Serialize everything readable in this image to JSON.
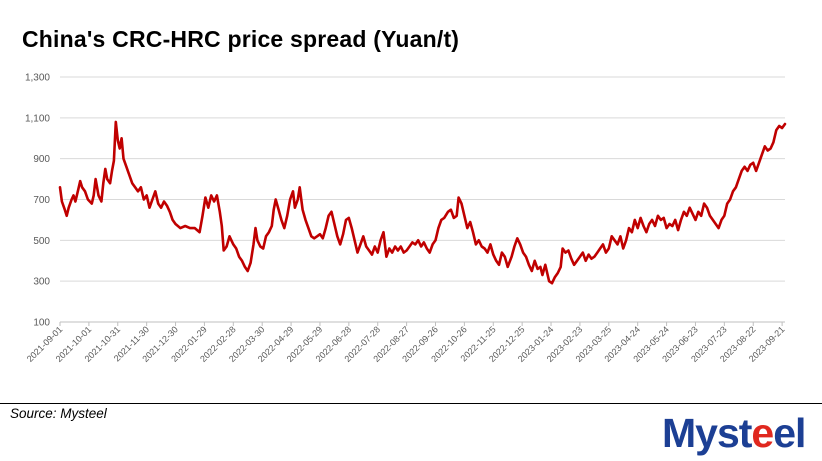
{
  "title": "China's CRC-HRC price spread (Yuan/t)",
  "source": "Source: Mysteel",
  "logo": {
    "text_part1": "Myst",
    "accent_part": "e",
    "text_part2": "el",
    "primary_color": "#1c3f94",
    "accent_color": "#e0281f"
  },
  "chart_data": {
    "type": "line",
    "title": "China's CRC-HRC price spread (Yuan/t)",
    "xlabel": "",
    "ylabel": "",
    "ylim": [
      100,
      1300
    ],
    "yticks": [
      100,
      300,
      500,
      700,
      900,
      1100,
      1300
    ],
    "ytick_labels": [
      "100",
      "300",
      "500",
      "700",
      "900",
      "1,100",
      "1,300"
    ],
    "xtick_labels": [
      "2021-09-01",
      "2021-10-01",
      "2021-10-31",
      "2021-11-30",
      "2021-12-30",
      "2022-01-29",
      "2022-02-28",
      "2022-03-30",
      "2022-04-29",
      "2022-05-29",
      "2022-06-28",
      "2022-07-28",
      "2022-08-27",
      "2022-09-26",
      "2022-10-26",
      "2022-11-25",
      "2022-12-25",
      "2023-01-24",
      "2023-02-23",
      "2023-03-25",
      "2023-04-24",
      "2023-05-24",
      "2023-06-23",
      "2023-07-23",
      "2023-08-22",
      "2023-09-21"
    ],
    "grid": "horizontal",
    "line_color": "#c00000",
    "series": [
      {
        "values": [
          [
            "2021-09-01",
            760
          ],
          [
            "2021-09-03",
            690
          ],
          [
            "2021-09-06",
            650
          ],
          [
            "2021-09-08",
            620
          ],
          [
            "2021-09-10",
            660
          ],
          [
            "2021-09-13",
            700
          ],
          [
            "2021-09-15",
            720
          ],
          [
            "2021-09-17",
            690
          ],
          [
            "2021-09-20",
            750
          ],
          [
            "2021-09-22",
            790
          ],
          [
            "2021-09-24",
            760
          ],
          [
            "2021-09-27",
            740
          ],
          [
            "2021-09-30",
            700
          ],
          [
            "2021-10-04",
            680
          ],
          [
            "2021-10-06",
            720
          ],
          [
            "2021-10-08",
            800
          ],
          [
            "2021-10-11",
            720
          ],
          [
            "2021-10-14",
            690
          ],
          [
            "2021-10-16",
            780
          ],
          [
            "2021-10-18",
            850
          ],
          [
            "2021-10-20",
            800
          ],
          [
            "2021-10-23",
            780
          ],
          [
            "2021-10-25",
            840
          ],
          [
            "2021-10-27",
            890
          ],
          [
            "2021-10-29",
            1080
          ],
          [
            "2021-10-31",
            990
          ],
          [
            "2021-11-02",
            950
          ],
          [
            "2021-11-04",
            1000
          ],
          [
            "2021-11-06",
            900
          ],
          [
            "2021-11-09",
            860
          ],
          [
            "2021-11-12",
            820
          ],
          [
            "2021-11-15",
            780
          ],
          [
            "2021-11-18",
            760
          ],
          [
            "2021-11-21",
            740
          ],
          [
            "2021-11-24",
            760
          ],
          [
            "2021-11-27",
            700
          ],
          [
            "2021-11-30",
            720
          ],
          [
            "2021-12-03",
            660
          ],
          [
            "2021-12-06",
            700
          ],
          [
            "2021-12-09",
            740
          ],
          [
            "2021-12-12",
            680
          ],
          [
            "2021-12-15",
            660
          ],
          [
            "2021-12-18",
            690
          ],
          [
            "2021-12-21",
            670
          ],
          [
            "2021-12-24",
            640
          ],
          [
            "2021-12-27",
            600
          ],
          [
            "2021-12-30",
            580
          ],
          [
            "2022-01-04",
            560
          ],
          [
            "2022-01-09",
            570
          ],
          [
            "2022-01-14",
            560
          ],
          [
            "2022-01-19",
            560
          ],
          [
            "2022-01-24",
            540
          ],
          [
            "2022-01-27",
            620
          ],
          [
            "2022-01-30",
            710
          ],
          [
            "2022-02-02",
            660
          ],
          [
            "2022-02-05",
            720
          ],
          [
            "2022-02-08",
            690
          ],
          [
            "2022-02-11",
            720
          ],
          [
            "2022-02-14",
            640
          ],
          [
            "2022-02-16",
            570
          ],
          [
            "2022-02-18",
            450
          ],
          [
            "2022-02-21",
            470
          ],
          [
            "2022-02-24",
            520
          ],
          [
            "2022-02-28",
            480
          ],
          [
            "2022-03-03",
            460
          ],
          [
            "2022-03-06",
            420
          ],
          [
            "2022-03-09",
            400
          ],
          [
            "2022-03-12",
            370
          ],
          [
            "2022-03-15",
            350
          ],
          [
            "2022-03-18",
            390
          ],
          [
            "2022-03-21",
            480
          ],
          [
            "2022-03-23",
            560
          ],
          [
            "2022-03-25",
            500
          ],
          [
            "2022-03-28",
            470
          ],
          [
            "2022-03-31",
            460
          ],
          [
            "2022-04-03",
            520
          ],
          [
            "2022-04-06",
            540
          ],
          [
            "2022-04-09",
            570
          ],
          [
            "2022-04-11",
            650
          ],
          [
            "2022-04-13",
            700
          ],
          [
            "2022-04-16",
            650
          ],
          [
            "2022-04-19",
            600
          ],
          [
            "2022-04-22",
            560
          ],
          [
            "2022-04-25",
            620
          ],
          [
            "2022-04-28",
            700
          ],
          [
            "2022-05-01",
            740
          ],
          [
            "2022-05-03",
            660
          ],
          [
            "2022-05-06",
            700
          ],
          [
            "2022-05-08",
            760
          ],
          [
            "2022-05-11",
            650
          ],
          [
            "2022-05-14",
            600
          ],
          [
            "2022-05-17",
            560
          ],
          [
            "2022-05-20",
            520
          ],
          [
            "2022-05-23",
            510
          ],
          [
            "2022-05-26",
            520
          ],
          [
            "2022-05-29",
            530
          ],
          [
            "2022-06-01",
            510
          ],
          [
            "2022-06-04",
            560
          ],
          [
            "2022-06-07",
            620
          ],
          [
            "2022-06-10",
            640
          ],
          [
            "2022-06-13",
            580
          ],
          [
            "2022-06-16",
            520
          ],
          [
            "2022-06-19",
            480
          ],
          [
            "2022-06-22",
            530
          ],
          [
            "2022-06-25",
            600
          ],
          [
            "2022-06-28",
            610
          ],
          [
            "2022-07-01",
            560
          ],
          [
            "2022-07-04",
            500
          ],
          [
            "2022-07-07",
            440
          ],
          [
            "2022-07-10",
            480
          ],
          [
            "2022-07-13",
            520
          ],
          [
            "2022-07-16",
            470
          ],
          [
            "2022-07-19",
            450
          ],
          [
            "2022-07-22",
            430
          ],
          [
            "2022-07-25",
            470
          ],
          [
            "2022-07-28",
            440
          ],
          [
            "2022-07-31",
            500
          ],
          [
            "2022-08-03",
            540
          ],
          [
            "2022-08-06",
            420
          ],
          [
            "2022-08-09",
            460
          ],
          [
            "2022-08-12",
            440
          ],
          [
            "2022-08-15",
            470
          ],
          [
            "2022-08-18",
            450
          ],
          [
            "2022-08-21",
            470
          ],
          [
            "2022-08-24",
            440
          ],
          [
            "2022-08-27",
            450
          ],
          [
            "2022-08-30",
            470
          ],
          [
            "2022-09-02",
            490
          ],
          [
            "2022-09-05",
            480
          ],
          [
            "2022-09-08",
            500
          ],
          [
            "2022-09-11",
            470
          ],
          [
            "2022-09-14",
            490
          ],
          [
            "2022-09-17",
            460
          ],
          [
            "2022-09-20",
            440
          ],
          [
            "2022-09-23",
            480
          ],
          [
            "2022-09-26",
            500
          ],
          [
            "2022-09-29",
            560
          ],
          [
            "2022-10-02",
            600
          ],
          [
            "2022-10-05",
            610
          ],
          [
            "2022-10-09",
            640
          ],
          [
            "2022-10-12",
            650
          ],
          [
            "2022-10-15",
            610
          ],
          [
            "2022-10-18",
            620
          ],
          [
            "2022-10-20",
            710
          ],
          [
            "2022-10-23",
            680
          ],
          [
            "2022-10-26",
            620
          ],
          [
            "2022-10-29",
            560
          ],
          [
            "2022-11-01",
            590
          ],
          [
            "2022-11-04",
            540
          ],
          [
            "2022-11-07",
            480
          ],
          [
            "2022-11-10",
            500
          ],
          [
            "2022-11-13",
            470
          ],
          [
            "2022-11-16",
            460
          ],
          [
            "2022-11-19",
            440
          ],
          [
            "2022-11-22",
            480
          ],
          [
            "2022-11-25",
            430
          ],
          [
            "2022-11-28",
            400
          ],
          [
            "2022-12-01",
            380
          ],
          [
            "2022-12-04",
            440
          ],
          [
            "2022-12-07",
            420
          ],
          [
            "2022-12-10",
            370
          ],
          [
            "2022-12-14",
            420
          ],
          [
            "2022-12-17",
            470
          ],
          [
            "2022-12-20",
            510
          ],
          [
            "2022-12-23",
            480
          ],
          [
            "2022-12-26",
            440
          ],
          [
            "2022-12-29",
            420
          ],
          [
            "2023-01-01",
            380
          ],
          [
            "2023-01-04",
            350
          ],
          [
            "2023-01-07",
            400
          ],
          [
            "2023-01-10",
            360
          ],
          [
            "2023-01-13",
            370
          ],
          [
            "2023-01-15",
            330
          ],
          [
            "2023-01-18",
            380
          ],
          [
            "2023-01-20",
            340
          ],
          [
            "2023-01-22",
            300
          ],
          [
            "2023-01-25",
            290
          ],
          [
            "2023-01-28",
            320
          ],
          [
            "2023-01-31",
            340
          ],
          [
            "2023-02-03",
            370
          ],
          [
            "2023-02-05",
            460
          ],
          [
            "2023-02-08",
            440
          ],
          [
            "2023-02-11",
            450
          ],
          [
            "2023-02-14",
            410
          ],
          [
            "2023-02-17",
            380
          ],
          [
            "2023-02-20",
            400
          ],
          [
            "2023-02-23",
            420
          ],
          [
            "2023-02-26",
            440
          ],
          [
            "2023-03-01",
            400
          ],
          [
            "2023-03-04",
            430
          ],
          [
            "2023-03-07",
            410
          ],
          [
            "2023-03-10",
            420
          ],
          [
            "2023-03-13",
            440
          ],
          [
            "2023-03-16",
            460
          ],
          [
            "2023-03-19",
            480
          ],
          [
            "2023-03-22",
            440
          ],
          [
            "2023-03-25",
            460
          ],
          [
            "2023-03-28",
            520
          ],
          [
            "2023-03-31",
            500
          ],
          [
            "2023-04-03",
            480
          ],
          [
            "2023-04-06",
            520
          ],
          [
            "2023-04-09",
            460
          ],
          [
            "2023-04-12",
            500
          ],
          [
            "2023-04-15",
            560
          ],
          [
            "2023-04-18",
            540
          ],
          [
            "2023-04-21",
            600
          ],
          [
            "2023-04-24",
            560
          ],
          [
            "2023-04-27",
            610
          ],
          [
            "2023-04-30",
            570
          ],
          [
            "2023-05-03",
            540
          ],
          [
            "2023-05-06",
            580
          ],
          [
            "2023-05-09",
            600
          ],
          [
            "2023-05-12",
            570
          ],
          [
            "2023-05-15",
            620
          ],
          [
            "2023-05-18",
            600
          ],
          [
            "2023-05-21",
            610
          ],
          [
            "2023-05-24",
            560
          ],
          [
            "2023-05-27",
            580
          ],
          [
            "2023-05-30",
            570
          ],
          [
            "2023-06-02",
            600
          ],
          [
            "2023-06-05",
            550
          ],
          [
            "2023-06-08",
            600
          ],
          [
            "2023-06-11",
            640
          ],
          [
            "2023-06-14",
            620
          ],
          [
            "2023-06-17",
            660
          ],
          [
            "2023-06-20",
            630
          ],
          [
            "2023-06-23",
            600
          ],
          [
            "2023-06-26",
            640
          ],
          [
            "2023-06-29",
            620
          ],
          [
            "2023-07-02",
            680
          ],
          [
            "2023-07-05",
            660
          ],
          [
            "2023-07-08",
            620
          ],
          [
            "2023-07-11",
            600
          ],
          [
            "2023-07-14",
            580
          ],
          [
            "2023-07-17",
            560
          ],
          [
            "2023-07-20",
            600
          ],
          [
            "2023-07-23",
            620
          ],
          [
            "2023-07-26",
            680
          ],
          [
            "2023-07-29",
            700
          ],
          [
            "2023-08-01",
            740
          ],
          [
            "2023-08-04",
            760
          ],
          [
            "2023-08-07",
            800
          ],
          [
            "2023-08-10",
            840
          ],
          [
            "2023-08-13",
            860
          ],
          [
            "2023-08-16",
            840
          ],
          [
            "2023-08-19",
            870
          ],
          [
            "2023-08-22",
            880
          ],
          [
            "2023-08-25",
            840
          ],
          [
            "2023-08-28",
            880
          ],
          [
            "2023-08-31",
            920
          ],
          [
            "2023-09-03",
            960
          ],
          [
            "2023-09-06",
            940
          ],
          [
            "2023-09-09",
            950
          ],
          [
            "2023-09-12",
            980
          ],
          [
            "2023-09-15",
            1040
          ],
          [
            "2023-09-18",
            1060
          ],
          [
            "2023-09-21",
            1050
          ],
          [
            "2023-09-24",
            1070
          ]
        ]
      }
    ]
  }
}
